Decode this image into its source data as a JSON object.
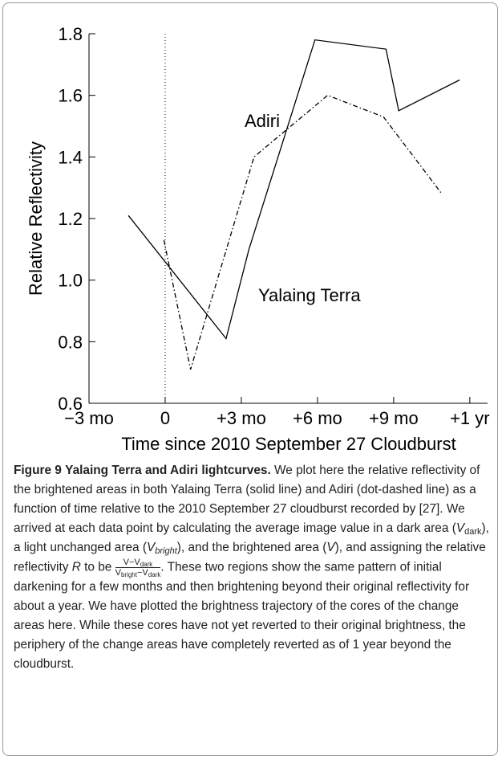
{
  "chart_data": {
    "type": "line",
    "xlabel": "Time since 2010 September 27 Cloudburst",
    "ylabel": "Relative Reflectivity",
    "xlim": [
      -3,
      12.7
    ],
    "ylim": [
      0.6,
      1.8
    ],
    "xticks": [
      {
        "value": -3,
        "label": "−3 mo"
      },
      0,
      {
        "value": 3,
        "label": "+3 mo"
      },
      {
        "value": 6,
        "label": "+6 mo"
      },
      {
        "value": 9,
        "label": "+9 mo"
      },
      {
        "value": 12,
        "label": "+1 yr"
      }
    ],
    "yticks": [
      0.6,
      0.8,
      {
        "value": 1,
        "label": "1.0"
      },
      1.2,
      1.4,
      1.6,
      1.8
    ],
    "reference_line_x": 0,
    "series": [
      {
        "name": "Yalaing Terra",
        "color": "#000000",
        "dash": "solid",
        "x": [
          -1.45,
          2.4,
          3.3,
          5.9,
          8.7,
          9.2,
          11.6
        ],
        "values": [
          1.21,
          0.81,
          1.1,
          1.78,
          1.75,
          1.55,
          1.65
        ]
      },
      {
        "name": "Adiri",
        "color": "#000000",
        "dash": "dashdot",
        "x": [
          -0.05,
          1.0,
          3.5,
          6.4,
          8.6,
          10.9
        ],
        "values": [
          1.13,
          0.71,
          1.4,
          1.6,
          1.53,
          1.28
        ]
      }
    ]
  },
  "caption": {
    "label": "Figure 9",
    "title": "Yalaing Terra and Adiri lightcurves.",
    "body": [
      "We plot here the relative reflectivity of the brightened areas in both Yalaing Terra (solid line) and Adiri (dot-dashed line) as a function of time relative to the 2010 September 27 cloudburst recorded by [27]. We arrived at each data point by calculating the average image value in a dark area (",
      "V",
      "dark",
      "), a light unchanged area (",
      "V",
      "bright",
      "), and the brightened area (",
      "V",
      "), and assigning the relative reflectivity ",
      "R",
      " to be ",
      "V−V",
      "dark",
      "V",
      "bright",
      "−V",
      "dark",
      ". These two regions show the same pattern of initial darkening for a few months and then brightening beyond their original reflectivity for about a year. We have plotted the brightness trajectory of the cores of the change areas here. While these cores have not yet reverted to their original brightness, the periphery of the change areas have completely reverted as of 1 year beyond the cloudburst."
    ]
  }
}
